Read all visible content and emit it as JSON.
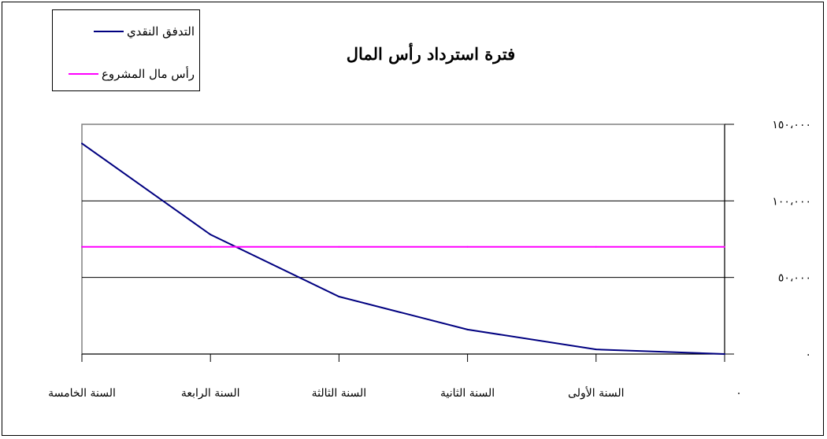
{
  "title": "فترة استرداد رأس المال",
  "legend": [
    {
      "label": "التدفق النقدي",
      "color": "#000080"
    },
    {
      "label": "رأس مال المشروع",
      "color": "#ff00ff"
    }
  ],
  "chart_data": {
    "type": "line",
    "title": "فترة استرداد رأس المال",
    "categories": [
      "٠",
      "السنة الأولى",
      "السنة الثانية",
      "السنة الثالثة",
      "السنة الرابعة",
      "السنة الخامسة"
    ],
    "x_direction": "right-to-left",
    "y_axis_position": "right",
    "yticks": [
      0,
      50000,
      100000,
      150000
    ],
    "ytick_labels": [
      "٠",
      "٥٠،٠٠٠",
      "١٠٠،٠٠٠",
      "١٥٠،٠٠٠"
    ],
    "ylim": [
      0,
      150000
    ],
    "grid": true,
    "legend_position": "top-left",
    "series": [
      {
        "name": "التدفق النقدي",
        "color": "#000080",
        "values": [
          0,
          3000,
          16000,
          37500,
          78000,
          137500
        ]
      },
      {
        "name": "رأس مال المشروع",
        "color": "#ff00ff",
        "values": [
          70000,
          70000,
          70000,
          70000,
          70000,
          70000
        ]
      }
    ]
  }
}
